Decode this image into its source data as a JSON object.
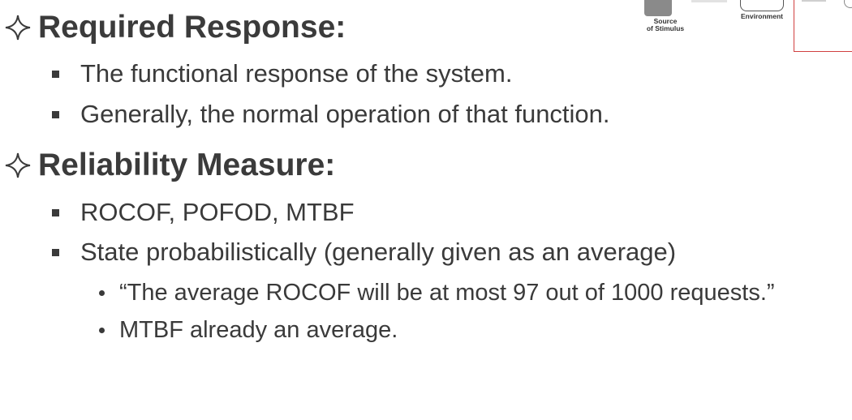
{
  "diagram": {
    "source_label_line1": "Source",
    "source_label_line2": "of Stimulus",
    "environment_label": "Environment"
  },
  "sections": [
    {
      "heading": "Required Response:",
      "bullets": [
        "The functional response of the system.",
        "Generally, the normal operation of that function."
      ]
    },
    {
      "heading": "Reliability Measure:",
      "bullets": [
        "ROCOF, POFOD, MTBF",
        "State probabilistically (generally given as an average)"
      ],
      "subbullets": [
        "“The average ROCOF will be at most 97 out of 1000 requests.”",
        "MTBF already an average."
      ]
    }
  ],
  "icons": {
    "heading_marker": "diamond-outline-icon",
    "bullet_marker": "square-bullet-icon",
    "subbullet_marker": "round-bullet-icon"
  },
  "colors": {
    "text": "#3a3a3a",
    "diagram_border": "#d04040"
  }
}
